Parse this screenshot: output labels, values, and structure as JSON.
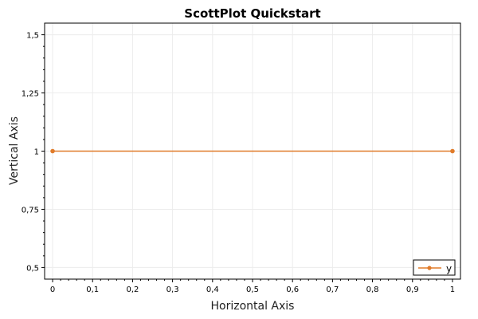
{
  "chart_data": {
    "type": "line",
    "title": "ScottPlot Quickstart",
    "xlabel": "Horizontal Axis",
    "ylabel": "Vertical Axis",
    "xlim": [
      -0.02,
      1.02
    ],
    "ylim": [
      0.45,
      1.55
    ],
    "x_ticks": [
      0,
      0.1,
      0.2,
      0.3,
      0.4,
      0.5,
      0.6,
      0.7,
      0.8,
      0.9,
      1
    ],
    "x_tick_labels": [
      "0",
      "0,1",
      "0,2",
      "0,3",
      "0,4",
      "0,5",
      "0,6",
      "0,7",
      "0,8",
      "0,9",
      "1"
    ],
    "y_ticks": [
      0.5,
      0.75,
      1,
      1.25,
      1.5
    ],
    "y_tick_labels": [
      "0,5",
      "0,75",
      "1",
      "1,25",
      "1,5"
    ],
    "grid": true,
    "legend_position": "bottom-right",
    "series": [
      {
        "name": "y",
        "color": "#e07b2a",
        "x": [
          0,
          1
        ],
        "y": [
          1,
          1
        ]
      }
    ]
  }
}
